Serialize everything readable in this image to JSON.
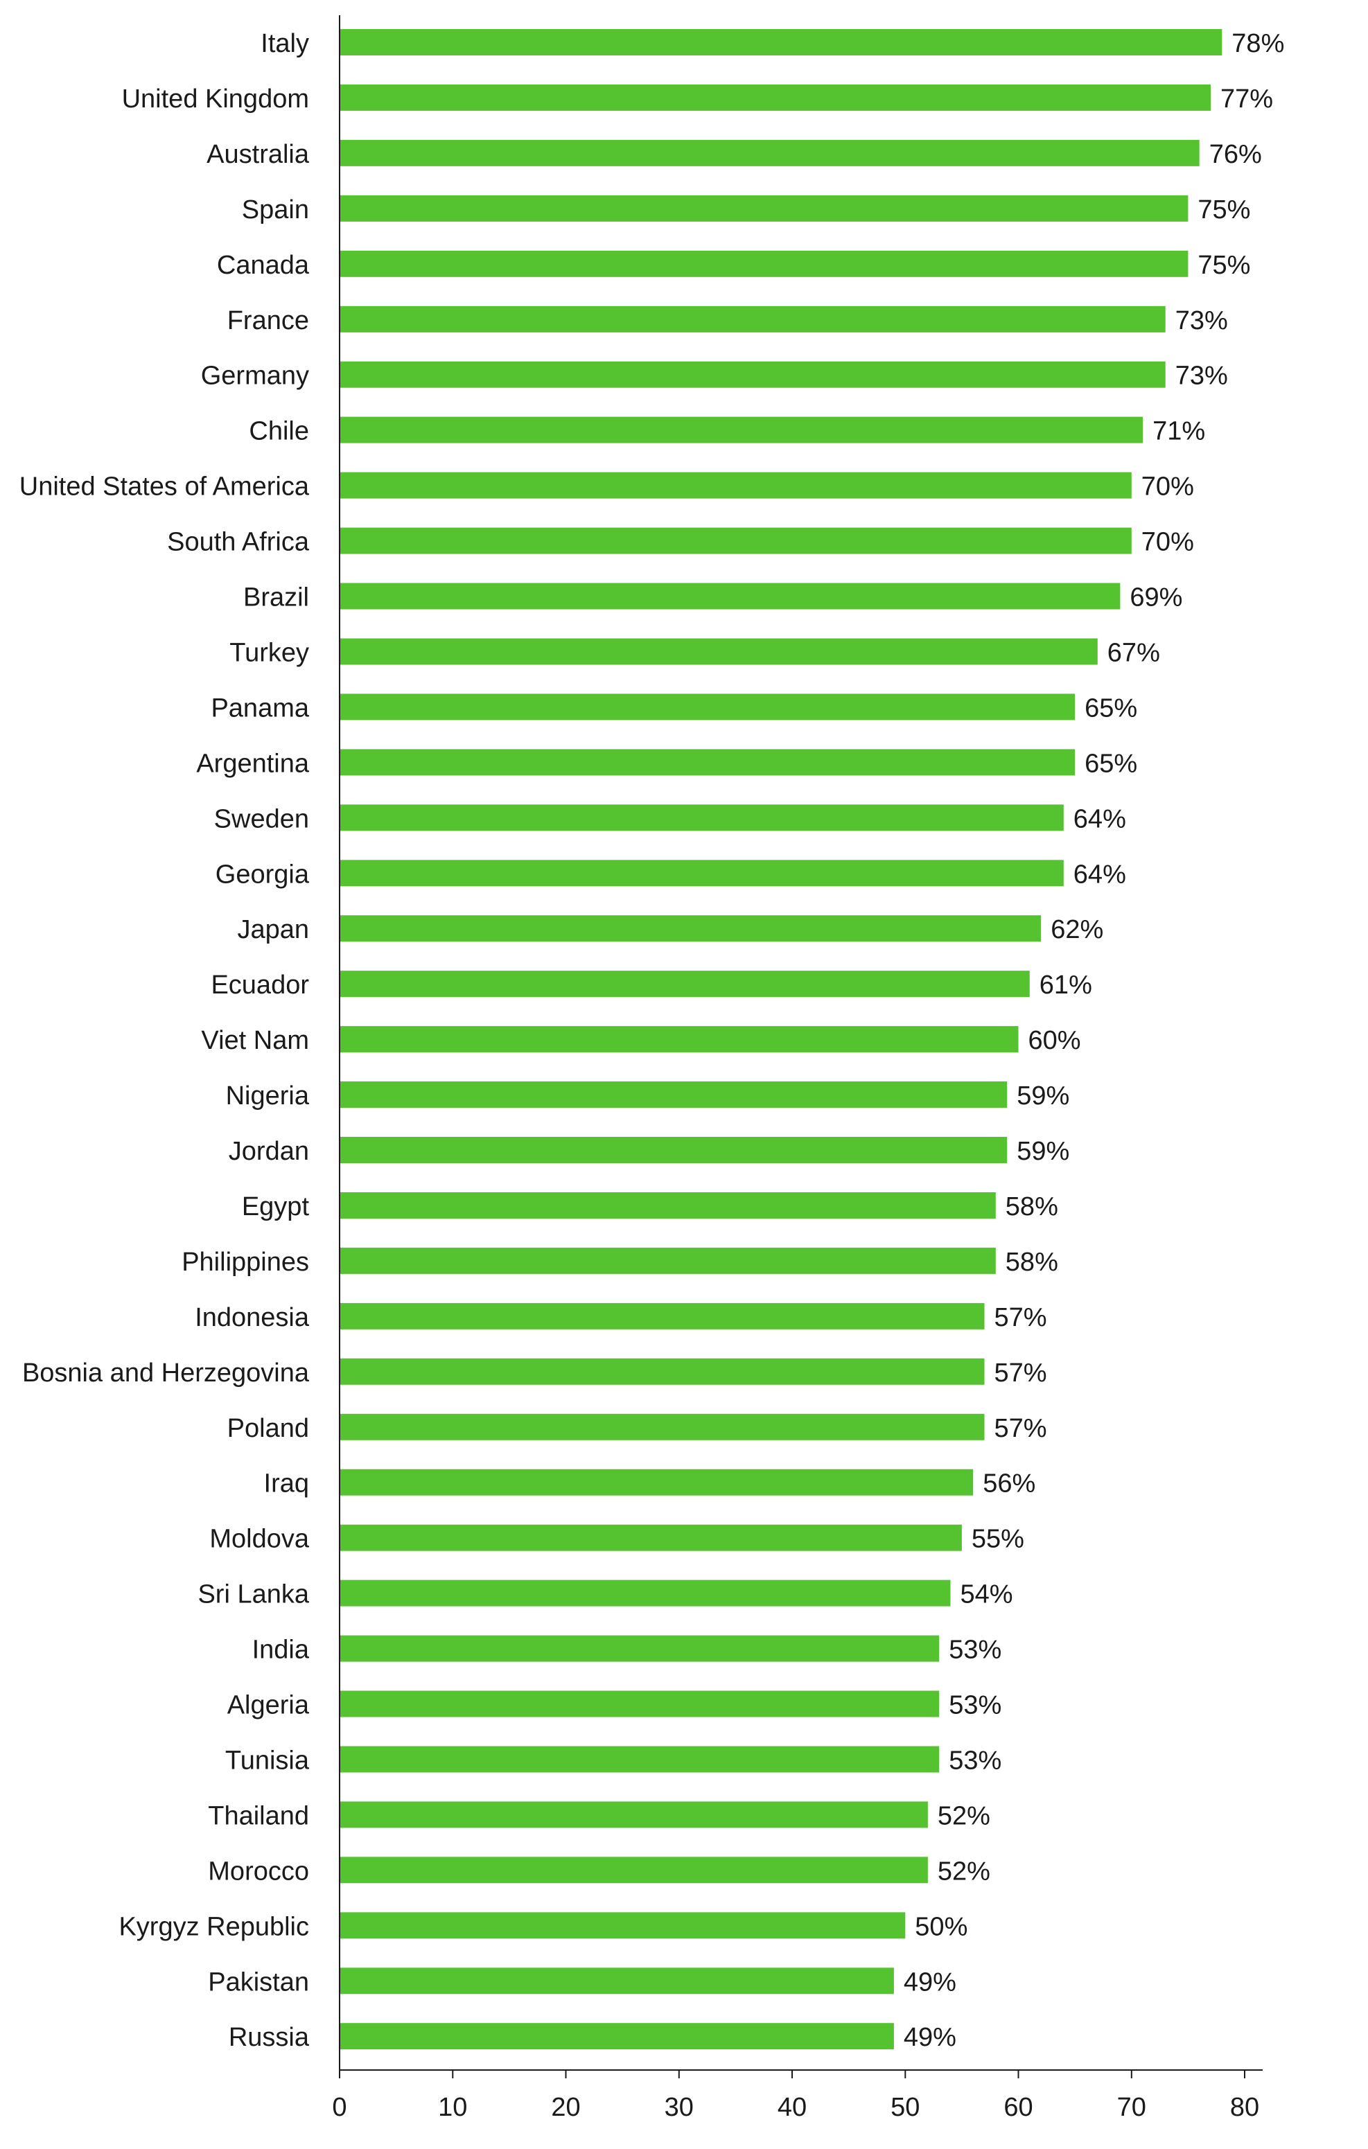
{
  "chart_data": {
    "type": "bar",
    "orientation": "horizontal",
    "categories": [
      "Italy",
      "United Kingdom",
      "Australia",
      "Spain",
      "Canada",
      "France",
      "Germany",
      "Chile",
      "United States of America",
      "South Africa",
      "Brazil",
      "Turkey",
      "Panama",
      "Argentina",
      "Sweden",
      "Georgia",
      "Japan",
      "Ecuador",
      "Viet Nam",
      "Nigeria",
      "Jordan",
      "Egypt",
      "Philippines",
      "Indonesia",
      "Bosnia and Herzegovina",
      "Poland",
      "Iraq",
      "Moldova",
      "Sri Lanka",
      "India",
      "Algeria",
      "Tunisia",
      "Thailand",
      "Morocco",
      "Kyrgyz Republic",
      "Pakistan",
      "Russia"
    ],
    "values": [
      78,
      77,
      76,
      75,
      75,
      73,
      73,
      71,
      70,
      70,
      69,
      67,
      65,
      65,
      64,
      64,
      62,
      61,
      60,
      59,
      59,
      58,
      58,
      57,
      57,
      57,
      56,
      55,
      54,
      53,
      53,
      53,
      52,
      52,
      50,
      49,
      49
    ],
    "data_labels": [
      "78%",
      "77%",
      "76%",
      "75%",
      "75%",
      "73%",
      "73%",
      "71%",
      "70%",
      "70%",
      "69%",
      "67%",
      "65%",
      "65%",
      "64%",
      "64%",
      "62%",
      "61%",
      "60%",
      "59%",
      "59%",
      "58%",
      "58%",
      "57%",
      "57%",
      "57%",
      "56%",
      "55%",
      "54%",
      "53%",
      "53%",
      "53%",
      "52%",
      "52%",
      "50%",
      "49%",
      "49%"
    ],
    "xlim": [
      0,
      80
    ],
    "xticks": [
      0,
      10,
      20,
      30,
      40,
      50,
      60,
      70,
      80
    ],
    "title": "",
    "xlabel": "",
    "ylabel": "",
    "grid": false,
    "legend": "none",
    "bar_color": "#55c22f",
    "axis_color": "#1a1a1a"
  }
}
